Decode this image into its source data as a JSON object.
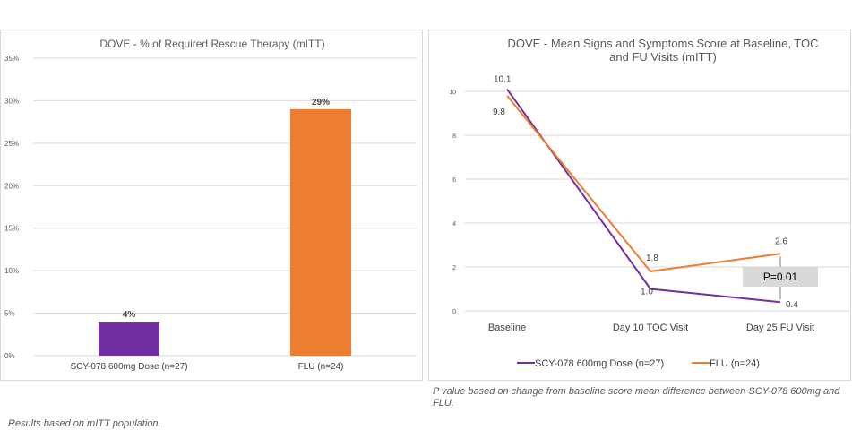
{
  "colors": {
    "scy": "#7030a0",
    "flu": "#ed7d31",
    "grid": "#d9d9d9",
    "axis_text": "#595959"
  },
  "chart_data": [
    {
      "type": "bar",
      "title": "DOVE - % of Required Rescue Therapy (mITT)",
      "categories": [
        "SCY-078 600mg Dose (n=27)",
        "FLU (n=24)"
      ],
      "values": [
        4,
        29
      ],
      "data_labels": [
        "4%",
        "29%"
      ],
      "bar_colors": [
        "#7030a0",
        "#ed7d31"
      ],
      "y_ticks": [
        "0%",
        "5%",
        "10%",
        "15%",
        "20%",
        "25%",
        "30%",
        "35%"
      ],
      "ylim": [
        0,
        35
      ],
      "grid": true
    },
    {
      "type": "line",
      "title_lines": [
        "DOVE - Mean Signs and Symptoms Score at Baseline, TOC",
        "and FU Visits (mITT)"
      ],
      "categories": [
        "Baseline",
        "Day 10 TOC Visit",
        "Day 25 FU Visit"
      ],
      "series": [
        {
          "name": "SCY-078 600mg Dose (n=27)",
          "values": [
            10.1,
            1.0,
            0.4
          ],
          "labels": [
            "10.1",
            "1.0",
            "0.4"
          ],
          "color": "#7030a0"
        },
        {
          "name": "FLU (n=24)",
          "values": [
            9.8,
            1.8,
            2.6
          ],
          "labels": [
            "9.8",
            "1.8",
            "2.6"
          ],
          "color": "#ed7d31"
        }
      ],
      "y_ticks": [
        "0",
        "2",
        "4",
        "6",
        "8",
        "10"
      ],
      "ylim": [
        0,
        10
      ],
      "grid": true,
      "legend": "bottom",
      "annotation": "P=0.01"
    }
  ],
  "footnotes": {
    "right": "P value based on change from baseline score mean difference between SCY-078 600mg and FLU.",
    "left": "Results based on mITT population."
  }
}
